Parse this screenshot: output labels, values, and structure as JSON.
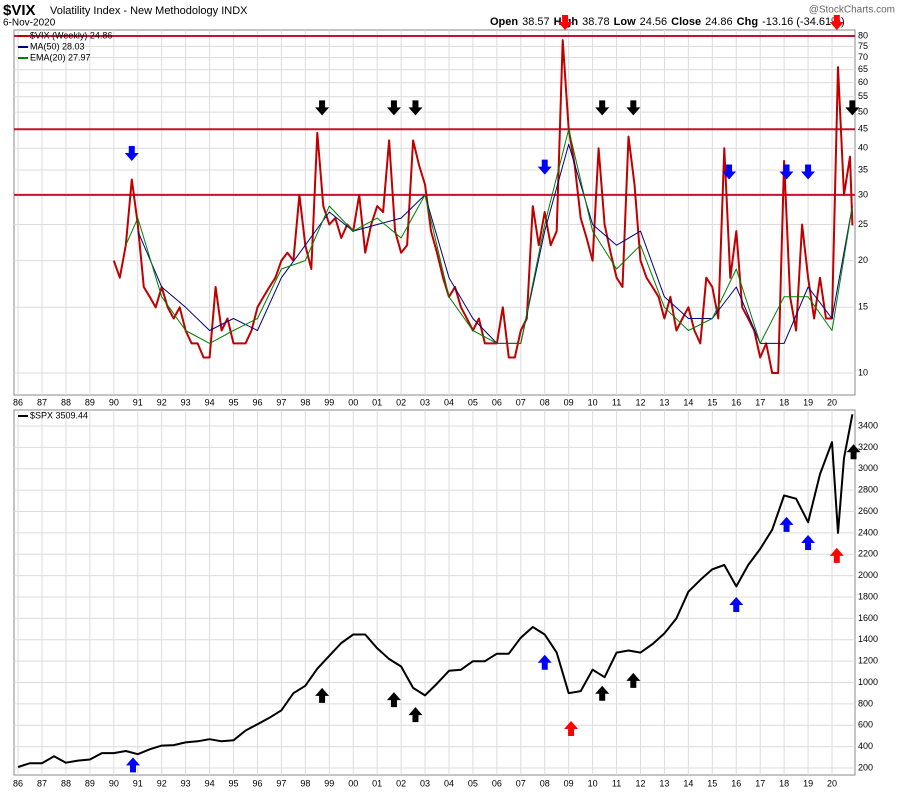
{
  "chart_data": [
    {
      "type": "line",
      "title": "$VIX",
      "subtitle": "Volatility Index - New Methodology INDX",
      "date": "6-Nov-2020",
      "quote": [
        "Open",
        "38.57",
        "High",
        "38.78",
        "Low",
        "24.56",
        "Close",
        "24.86",
        "Chg",
        "-13.16 (-34.61%)"
      ],
      "watermark": "@StockCharts.com",
      "log_scale": true,
      "grid": true,
      "xlim": [
        1985.83,
        2020.96
      ],
      "ylim": [
        8.73,
        83
      ],
      "xticks": [
        {
          "value": 1986,
          "label": "86"
        },
        {
          "value": 1987,
          "label": "87"
        },
        {
          "value": 1988,
          "label": "88"
        },
        {
          "value": 1989,
          "label": "89"
        },
        {
          "value": 1990,
          "label": "90"
        },
        {
          "value": 1991,
          "label": "91"
        },
        {
          "value": 1992,
          "label": "92"
        },
        {
          "value": 1993,
          "label": "93"
        },
        {
          "value": 1994,
          "label": "94"
        },
        {
          "value": 1995,
          "label": "95"
        },
        {
          "value": 1996,
          "label": "96"
        },
        {
          "value": 1997,
          "label": "97"
        },
        {
          "value": 1998,
          "label": "98"
        },
        {
          "value": 1999,
          "label": "99"
        },
        {
          "value": 2000,
          "label": "00"
        },
        {
          "value": 2001,
          "label": "01"
        },
        {
          "value": 2002,
          "label": "02"
        },
        {
          "value": 2003,
          "label": "03"
        },
        {
          "value": 2004,
          "label": "04"
        },
        {
          "value": 2005,
          "label": "05"
        },
        {
          "value": 2006,
          "label": "06"
        },
        {
          "value": 2007,
          "label": "07"
        },
        {
          "value": 2008,
          "label": "08"
        },
        {
          "value": 2009,
          "label": "09"
        },
        {
          "value": 2010,
          "label": "10"
        },
        {
          "value": 2011,
          "label": "11"
        },
        {
          "value": 2012,
          "label": "12"
        },
        {
          "value": 2013,
          "label": "13"
        },
        {
          "value": 2014,
          "label": "14"
        },
        {
          "value": 2015,
          "label": "15"
        },
        {
          "value": 2016,
          "label": "16"
        },
        {
          "value": 2017,
          "label": "17"
        },
        {
          "value": 2018,
          "label": "18"
        },
        {
          "value": 2019,
          "label": "19"
        },
        {
          "value": 2020,
          "label": "20"
        }
      ],
      "yticks": [
        10,
        15,
        20,
        25,
        30,
        35,
        40,
        45,
        50,
        55,
        60,
        65,
        70,
        75,
        80
      ],
      "hlines": [
        {
          "value": 80,
          "color": "#c8102e"
        },
        {
          "value": 45,
          "color": "#c8102e"
        },
        {
          "value": 30,
          "color": "#c8102e"
        }
      ],
      "series": [
        {
          "name": "$VIX (Weekly) 24.86",
          "color": "#c00000",
          "x": [
            1990,
            1990.25,
            1990.5,
            1990.75,
            1991,
            1991.25,
            1991.5,
            1991.75,
            1992,
            1992.25,
            1992.5,
            1992.75,
            1993,
            1993.25,
            1993.5,
            1993.75,
            1994,
            1994.25,
            1994.5,
            1994.75,
            1995,
            1995.25,
            1995.5,
            1995.75,
            1996,
            1996.25,
            1996.5,
            1996.75,
            1997,
            1997.25,
            1997.5,
            1997.75,
            1998,
            1998.25,
            1998.5,
            1998.75,
            1999,
            1999.25,
            1999.5,
            1999.75,
            2000,
            2000.25,
            2000.5,
            2000.75,
            2001,
            2001.25,
            2001.5,
            2001.75,
            2002,
            2002.25,
            2002.5,
            2002.75,
            2003,
            2003.25,
            2003.5,
            2003.75,
            2004,
            2004.25,
            2004.5,
            2004.75,
            2005,
            2005.25,
            2005.5,
            2005.75,
            2006,
            2006.25,
            2006.5,
            2006.75,
            2007,
            2007.25,
            2007.5,
            2007.75,
            2008,
            2008.25,
            2008.5,
            2008.75,
            2009,
            2009.25,
            2009.5,
            2009.75,
            2010,
            2010.25,
            2010.5,
            2010.75,
            2011,
            2011.25,
            2011.5,
            2011.75,
            2012,
            2012.25,
            2012.5,
            2012.75,
            2013,
            2013.25,
            2013.5,
            2013.75,
            2014,
            2014.25,
            2014.5,
            2014.75,
            2015,
            2015.25,
            2015.5,
            2015.75,
            2016,
            2016.25,
            2016.5,
            2016.75,
            2017,
            2017.25,
            2017.5,
            2017.75,
            2018,
            2018.25,
            2018.5,
            2018.75,
            2019,
            2019.25,
            2019.5,
            2019.75,
            2020,
            2020.25,
            2020.5,
            2020.75,
            2020.85
          ],
          "values": [
            20,
            18,
            22,
            33,
            25,
            17,
            16,
            15,
            17,
            15,
            14,
            15,
            13,
            12,
            12,
            11,
            11,
            17,
            13,
            14,
            12,
            12,
            12,
            13,
            15,
            16,
            17,
            18,
            20,
            21,
            20,
            30,
            22,
            19,
            44,
            28,
            25,
            26,
            23,
            25,
            24,
            30,
            21,
            25,
            28,
            27,
            42,
            24,
            21,
            22,
            42,
            36,
            32,
            24,
            21,
            18,
            16,
            17,
            15,
            14,
            13,
            14,
            12,
            12,
            12,
            15,
            11,
            11,
            13,
            14,
            28,
            22,
            27,
            22,
            24,
            78,
            45,
            36,
            26,
            23,
            20,
            40,
            25,
            21,
            18,
            17,
            43,
            32,
            20,
            18,
            17,
            16,
            14,
            16,
            13,
            14,
            15,
            13,
            12,
            18,
            17,
            14,
            40,
            18,
            24,
            15,
            14,
            13,
            11,
            12,
            10,
            10,
            37,
            16,
            13,
            25,
            18,
            14,
            18,
            14,
            14,
            66,
            30,
            38,
            24.86
          ]
        },
        {
          "name": "MA(50) 28.03",
          "color": "#000080",
          "x": [
            1991,
            1992,
            1993,
            1994,
            1995,
            1996,
            1997,
            1998,
            1999,
            2000,
            2001,
            2002,
            2003,
            2004,
            2005,
            2006,
            2007,
            2008,
            2009,
            2010,
            2011,
            2012,
            2013,
            2014,
            2015,
            2016,
            2017,
            2018,
            2019,
            2020,
            2020.85
          ],
          "values": [
            24,
            17,
            15,
            13,
            14,
            13,
            18,
            22,
            27,
            24,
            25,
            26,
            30,
            18,
            14,
            12,
            12,
            24,
            41,
            25,
            22,
            24,
            16,
            14,
            14,
            17,
            12,
            12,
            17,
            14,
            28.03
          ]
        },
        {
          "name": "EMA(20) 27.97",
          "color": "#008000",
          "x": [
            1990.5,
            1991,
            1992,
            1993,
            1994,
            1995,
            1996,
            1997,
            1998,
            1999,
            2000,
            2001,
            2002,
            2003,
            2004,
            2005,
            2006,
            2007,
            2008,
            2009,
            2010,
            2011,
            2012,
            2013,
            2014,
            2015,
            2016,
            2017,
            2018,
            2019,
            2020,
            2020.85
          ],
          "values": [
            22,
            26,
            16,
            13,
            12,
            13,
            14,
            19,
            20,
            28,
            24,
            26,
            23,
            30,
            16,
            13,
            12,
            12,
            25,
            45,
            24,
            19,
            22,
            15,
            13,
            14,
            19,
            12,
            16,
            16,
            13,
            27.97
          ]
        }
      ],
      "arrows": [
        {
          "x": 1990.75,
          "y": 37,
          "color": "#0000ff",
          "dir": "down"
        },
        {
          "x": 1998.7,
          "y": 49,
          "color": "#000000",
          "dir": "down"
        },
        {
          "x": 2001.7,
          "y": 49,
          "color": "#000000",
          "dir": "down"
        },
        {
          "x": 2002.6,
          "y": 49,
          "color": "#000000",
          "dir": "down"
        },
        {
          "x": 2008.0,
          "y": 34,
          "color": "#0000ff",
          "dir": "down"
        },
        {
          "x": 2008.85,
          "y": 83,
          "color": "#ff0000",
          "dir": "down"
        },
        {
          "x": 2010.4,
          "y": 49,
          "color": "#000000",
          "dir": "down"
        },
        {
          "x": 2011.7,
          "y": 49,
          "color": "#000000",
          "dir": "down"
        },
        {
          "x": 2015.7,
          "y": 33,
          "color": "#0000ff",
          "dir": "down"
        },
        {
          "x": 2018.1,
          "y": 33,
          "color": "#0000ff",
          "dir": "down"
        },
        {
          "x": 2019.0,
          "y": 33,
          "color": "#0000ff",
          "dir": "down"
        },
        {
          "x": 2020.2,
          "y": 83,
          "color": "#ff0000",
          "dir": "down"
        },
        {
          "x": 2020.85,
          "y": 49,
          "color": "#000000",
          "dir": "down"
        }
      ]
    },
    {
      "type": "line",
      "grid": true,
      "log_scale": false,
      "xlim": [
        1985.83,
        2020.96
      ],
      "ylim": [
        135,
        3550
      ],
      "xticks": [
        {
          "value": 1986,
          "label": "86"
        },
        {
          "value": 1987,
          "label": "87"
        },
        {
          "value": 1988,
          "label": "88"
        },
        {
          "value": 1989,
          "label": "89"
        },
        {
          "value": 1990,
          "label": "90"
        },
        {
          "value": 1991,
          "label": "91"
        },
        {
          "value": 1992,
          "label": "92"
        },
        {
          "value": 1993,
          "label": "93"
        },
        {
          "value": 1994,
          "label": "94"
        },
        {
          "value": 1995,
          "label": "95"
        },
        {
          "value": 1996,
          "label": "96"
        },
        {
          "value": 1997,
          "label": "97"
        },
        {
          "value": 1998,
          "label": "98"
        },
        {
          "value": 1999,
          "label": "99"
        },
        {
          "value": 2000,
          "label": "00"
        },
        {
          "value": 2001,
          "label": "01"
        },
        {
          "value": 2002,
          "label": "02"
        },
        {
          "value": 2003,
          "label": "03"
        },
        {
          "value": 2004,
          "label": "04"
        },
        {
          "value": 2005,
          "label": "05"
        },
        {
          "value": 2006,
          "label": "06"
        },
        {
          "value": 2007,
          "label": "07"
        },
        {
          "value": 2008,
          "label": "08"
        },
        {
          "value": 2009,
          "label": "09"
        },
        {
          "value": 2010,
          "label": "10"
        },
        {
          "value": 2011,
          "label": "11"
        },
        {
          "value": 2012,
          "label": "12"
        },
        {
          "value": 2013,
          "label": "13"
        },
        {
          "value": 2014,
          "label": "14"
        },
        {
          "value": 2015,
          "label": "15"
        },
        {
          "value": 2016,
          "label": "16"
        },
        {
          "value": 2017,
          "label": "17"
        },
        {
          "value": 2018,
          "label": "18"
        },
        {
          "value": 2019,
          "label": "19"
        },
        {
          "value": 2020,
          "label": "20"
        }
      ],
      "yticks": [
        200,
        400,
        600,
        800,
        1000,
        1200,
        1400,
        1600,
        1800,
        2000,
        2200,
        2400,
        2600,
        2800,
        3000,
        3200,
        3400
      ],
      "series": [
        {
          "name": "$SPX 3509.44",
          "color": "#000000",
          "x": [
            1986,
            1986.5,
            1987,
            1987.5,
            1988,
            1988.5,
            1989,
            1989.5,
            1990,
            1990.5,
            1991,
            1991.5,
            1992,
            1992.5,
            1993,
            1993.5,
            1994,
            1994.5,
            1995,
            1995.5,
            1996,
            1996.5,
            1997,
            1997.5,
            1998,
            1998.5,
            1999,
            1999.5,
            2000,
            2000.5,
            2001,
            2001.5,
            2002,
            2002.5,
            2003,
            2003.5,
            2004,
            2004.5,
            2005,
            2005.5,
            2006,
            2006.5,
            2007,
            2007.5,
            2008,
            2008.5,
            2009,
            2009.5,
            2010,
            2010.5,
            2011,
            2011.5,
            2012,
            2012.5,
            2013,
            2013.5,
            2014,
            2014.5,
            2015,
            2015.5,
            2016,
            2016.5,
            2017,
            2017.5,
            2018,
            2018.5,
            2019,
            2019.5,
            2020,
            2020.25,
            2020.5,
            2020.85
          ],
          "values": [
            210,
            245,
            245,
            310,
            250,
            270,
            280,
            340,
            340,
            360,
            330,
            375,
            410,
            415,
            440,
            450,
            470,
            450,
            460,
            550,
            610,
            670,
            740,
            900,
            970,
            1130,
            1250,
            1370,
            1450,
            1450,
            1320,
            1220,
            1150,
            950,
            880,
            990,
            1110,
            1120,
            1200,
            1200,
            1270,
            1270,
            1420,
            1520,
            1450,
            1280,
            900,
            920,
            1120,
            1050,
            1280,
            1300,
            1280,
            1360,
            1460,
            1600,
            1850,
            1960,
            2060,
            2100,
            1900,
            2100,
            2250,
            2430,
            2750,
            2720,
            2500,
            2950,
            3250,
            2400,
            3100,
            3509.44
          ]
        }
      ],
      "arrows": [
        {
          "x": 1990.8,
          "y": 300,
          "color": "#0000ff",
          "dir": "up"
        },
        {
          "x": 1998.7,
          "y": 950,
          "color": "#000000",
          "dir": "up"
        },
        {
          "x": 2001.7,
          "y": 910,
          "color": "#000000",
          "dir": "up"
        },
        {
          "x": 2002.6,
          "y": 770,
          "color": "#000000",
          "dir": "up"
        },
        {
          "x": 2008.0,
          "y": 1260,
          "color": "#0000ff",
          "dir": "up"
        },
        {
          "x": 2009.1,
          "y": 640,
          "color": "#ff0000",
          "dir": "up"
        },
        {
          "x": 2010.4,
          "y": 970,
          "color": "#000000",
          "dir": "up"
        },
        {
          "x": 2011.7,
          "y": 1090,
          "color": "#000000",
          "dir": "up"
        },
        {
          "x": 2016.0,
          "y": 1800,
          "color": "#0000ff",
          "dir": "up"
        },
        {
          "x": 2018.1,
          "y": 2550,
          "color": "#0000ff",
          "dir": "up"
        },
        {
          "x": 2019.0,
          "y": 2380,
          "color": "#0000ff",
          "dir": "up"
        },
        {
          "x": 2020.2,
          "y": 2260,
          "color": "#ff0000",
          "dir": "up"
        },
        {
          "x": 2020.9,
          "y": 3230,
          "color": "#000000",
          "dir": "up"
        }
      ]
    }
  ]
}
